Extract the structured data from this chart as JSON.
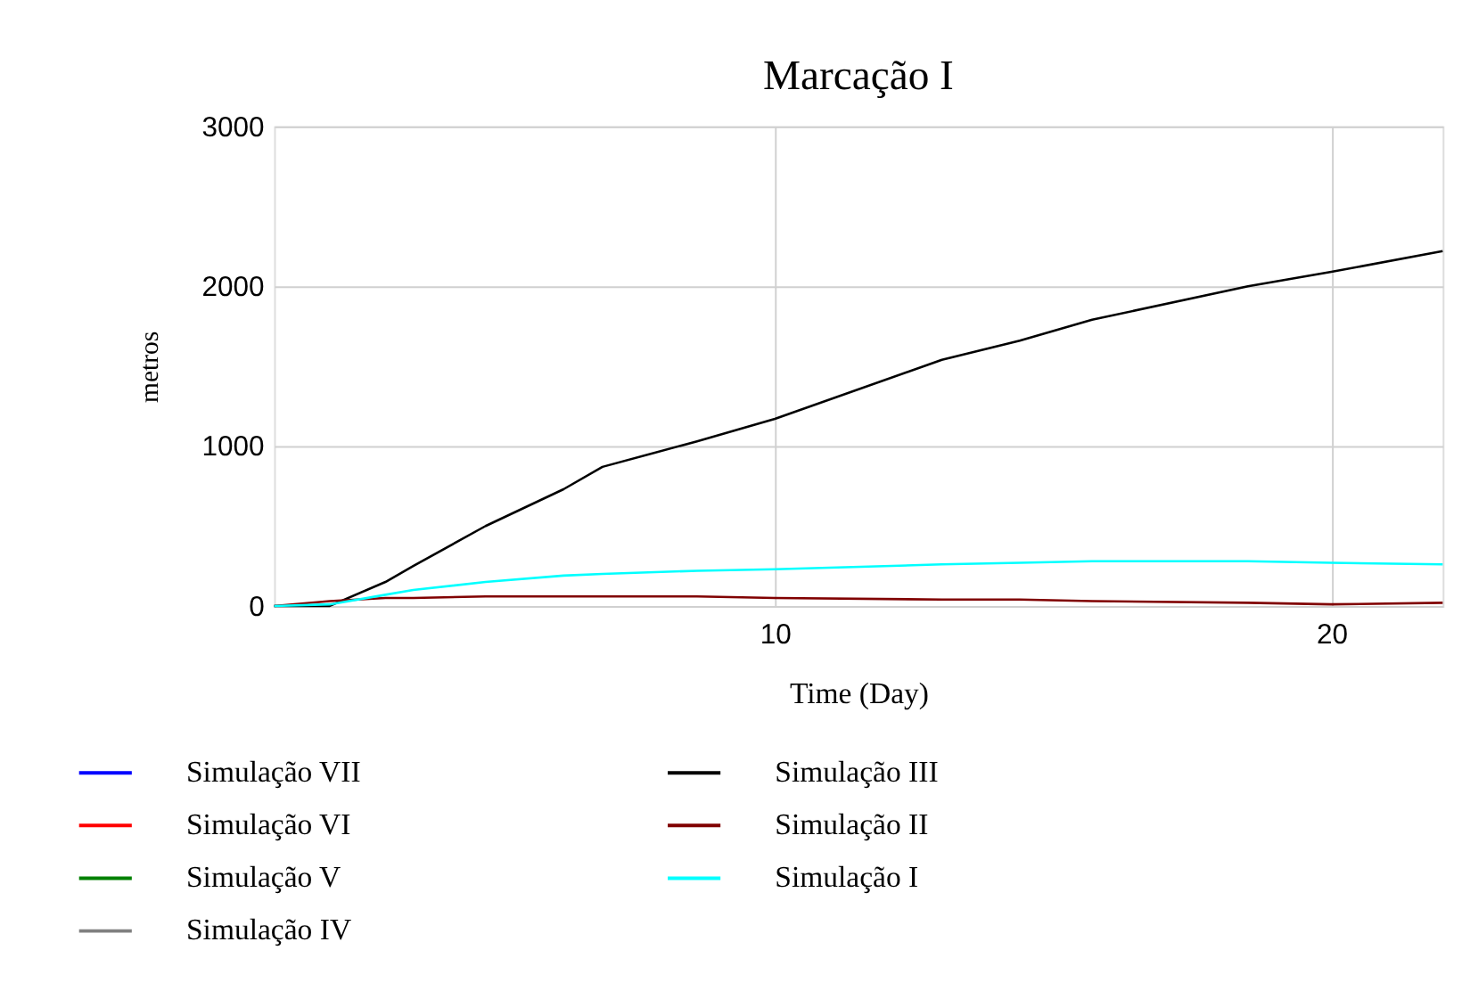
{
  "chart_data": {
    "type": "line",
    "title": "Marcação I",
    "xlabel": "Time (Day)",
    "ylabel": "metros",
    "xlim": [
      1,
      22
    ],
    "xticks": [
      10,
      20
    ],
    "ylim": [
      0,
      3000
    ],
    "yticks": [
      0,
      1000,
      2000,
      3000
    ],
    "grid": true,
    "legend": "bottom",
    "marker": "none",
    "line_style": "solid",
    "x": [
      1,
      2,
      3,
      3.5,
      4.8,
      6.2,
      6.9,
      8.6,
      10,
      13,
      14.4,
      15.7,
      18.5,
      20,
      22
    ],
    "series": [
      {
        "name": "Simulação VII",
        "color": "#0000ff",
        "values": [
          null,
          null,
          null,
          null,
          null,
          null,
          null,
          null,
          null,
          null,
          null,
          null,
          null,
          null,
          null
        ]
      },
      {
        "name": "Simulação VI",
        "color": "#ff0000",
        "values": [
          null,
          null,
          null,
          null,
          null,
          null,
          null,
          null,
          null,
          null,
          null,
          null,
          null,
          null,
          null
        ]
      },
      {
        "name": "Simulação V",
        "color": "#008000",
        "values": [
          null,
          null,
          null,
          null,
          null,
          null,
          null,
          null,
          null,
          null,
          null,
          null,
          null,
          null,
          null
        ]
      },
      {
        "name": "Simulação IV",
        "color": "#808080",
        "values": [
          null,
          null,
          null,
          null,
          null,
          null,
          null,
          null,
          null,
          null,
          null,
          null,
          null,
          null,
          null
        ]
      },
      {
        "name": "Simulação III",
        "color": "#000000",
        "values": [
          0,
          0,
          150,
          250,
          500,
          730,
          870,
          1030,
          1170,
          1540,
          1660,
          1790,
          2000,
          2090,
          2220
        ]
      },
      {
        "name": "Simulação II",
        "color": "#800000",
        "values": [
          0,
          30,
          50,
          50,
          60,
          60,
          60,
          60,
          50,
          40,
          40,
          30,
          20,
          10,
          20
        ]
      },
      {
        "name": "Simulação I",
        "color": "#00ffff",
        "values": [
          0,
          10,
          70,
          100,
          150,
          190,
          200,
          220,
          230,
          260,
          270,
          280,
          280,
          270,
          260
        ]
      }
    ]
  }
}
